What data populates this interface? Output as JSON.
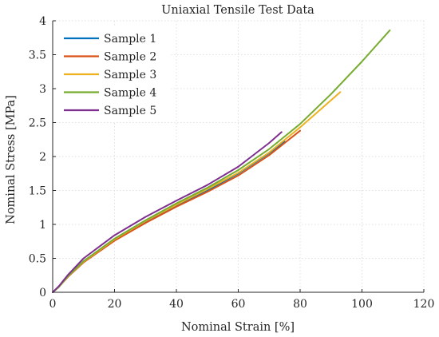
{
  "chart_data": {
    "type": "line",
    "title": "Uniaxial Tensile Test Data",
    "xlabel": "Nominal Strain [%]",
    "ylabel": "Nominal Stress [MPa]",
    "xlim": [
      0,
      120
    ],
    "ylim": [
      0,
      4
    ],
    "xticks": [
      0,
      20,
      40,
      60,
      80,
      100,
      120
    ],
    "yticks": [
      0,
      0.5,
      1,
      1.5,
      2,
      2.5,
      3,
      3.5,
      4
    ],
    "xtick_labels": [
      "0",
      "20",
      "40",
      "60",
      "80",
      "100",
      "120"
    ],
    "ytick_labels": [
      "0",
      "0.5",
      "1",
      "1.5",
      "2",
      "2.5",
      "3",
      "3.5",
      "4"
    ],
    "grid": true,
    "legend_position": "top-left",
    "series": [
      {
        "name": "Sample 1",
        "color": "#0072BD",
        "x": [
          0,
          2,
          5,
          10,
          20,
          30,
          40,
          50,
          60,
          70,
          75
        ],
        "y": [
          0,
          0.08,
          0.24,
          0.45,
          0.78,
          1.04,
          1.28,
          1.5,
          1.75,
          2.05,
          2.22
        ]
      },
      {
        "name": "Sample 2",
        "color": "#D95319",
        "x": [
          0,
          2,
          5,
          10,
          20,
          30,
          40,
          50,
          60,
          70,
          80
        ],
        "y": [
          0,
          0.08,
          0.23,
          0.44,
          0.76,
          1.02,
          1.26,
          1.48,
          1.72,
          2.02,
          2.38
        ]
      },
      {
        "name": "Sample 3",
        "color": "#EDB120",
        "x": [
          0,
          2,
          5,
          10,
          20,
          30,
          40,
          50,
          60,
          70,
          80,
          85,
          90,
          93
        ],
        "y": [
          0,
          0.08,
          0.24,
          0.45,
          0.78,
          1.05,
          1.29,
          1.52,
          1.76,
          2.06,
          2.43,
          2.63,
          2.83,
          2.95
        ]
      },
      {
        "name": "Sample 4",
        "color": "#77AC30",
        "x": [
          0,
          2,
          5,
          10,
          20,
          30,
          40,
          50,
          60,
          70,
          80,
          90,
          100,
          109
        ],
        "y": [
          0,
          0.08,
          0.24,
          0.46,
          0.79,
          1.06,
          1.31,
          1.54,
          1.8,
          2.11,
          2.48,
          2.92,
          3.4,
          3.86
        ]
      },
      {
        "name": "Sample 5",
        "color": "#7E2F8E",
        "x": [
          0,
          2,
          5,
          10,
          20,
          30,
          40,
          50,
          60,
          70,
          74
        ],
        "y": [
          0,
          0.09,
          0.26,
          0.5,
          0.84,
          1.11,
          1.35,
          1.58,
          1.85,
          2.2,
          2.36
        ]
      }
    ]
  }
}
